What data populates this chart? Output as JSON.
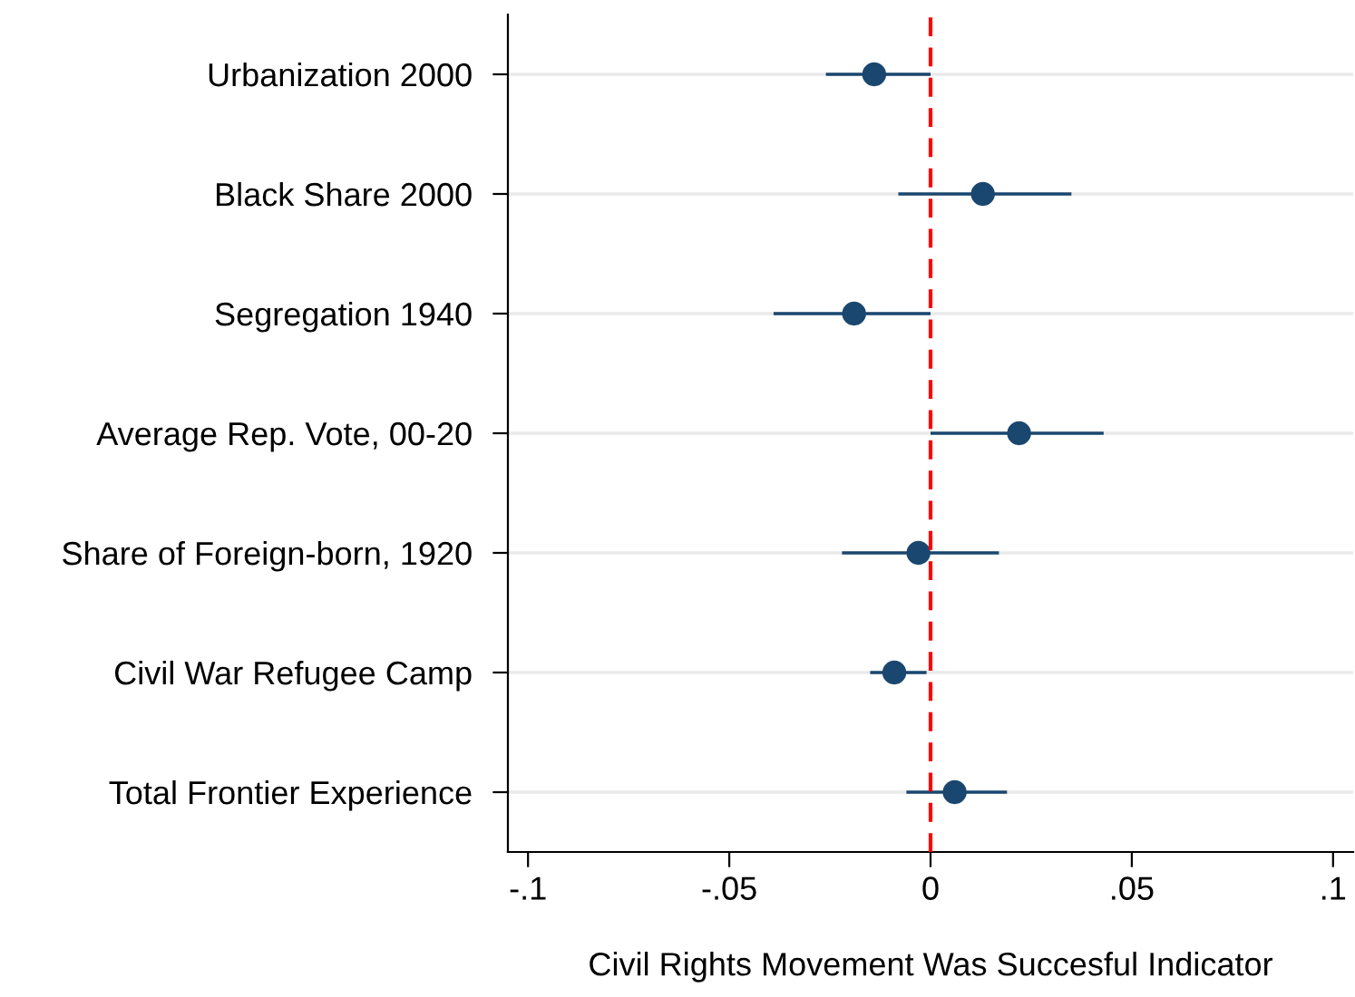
{
  "chart_data": {
    "type": "scatter",
    "orientation": "horizontal",
    "xlabel": "Civil Rights Movement Was Succesful Indicator",
    "categories": [
      "Urbanization 2000",
      "Black Share 2000",
      "Segregation 1940",
      "Average Rep. Vote, 00-20",
      "Share of Foreign-born, 1920",
      "Civil War Refugee Camp",
      "Total Frontier Experience"
    ],
    "series": [
      {
        "color": "#1a476f",
        "values": [
          -0.014,
          0.013,
          -0.019,
          0.022,
          -0.003,
          -0.009,
          0.006
        ],
        "errors": [
          [
            -0.026,
            0.0
          ],
          [
            -0.008,
            0.035
          ],
          [
            -0.039,
            0.0
          ],
          [
            0.0,
            0.043
          ],
          [
            -0.022,
            0.017
          ],
          [
            -0.015,
            -0.001
          ],
          [
            -0.006,
            0.019
          ]
        ]
      }
    ],
    "xlim": [
      -0.105,
      0.105
    ],
    "xticks": [
      {
        "value": -0.1,
        "label": "-.1"
      },
      {
        "value": -0.05,
        "label": "-.05"
      },
      0,
      {
        "value": 0.05,
        "label": ".05"
      },
      {
        "value": 0.1,
        "label": ".1"
      }
    ],
    "ref_lines": [
      {
        "axis": "x",
        "value": 0,
        "color": "#ff0000",
        "line_style": "dashed"
      }
    ],
    "grid": "y",
    "marker": "circle",
    "legend": false
  }
}
